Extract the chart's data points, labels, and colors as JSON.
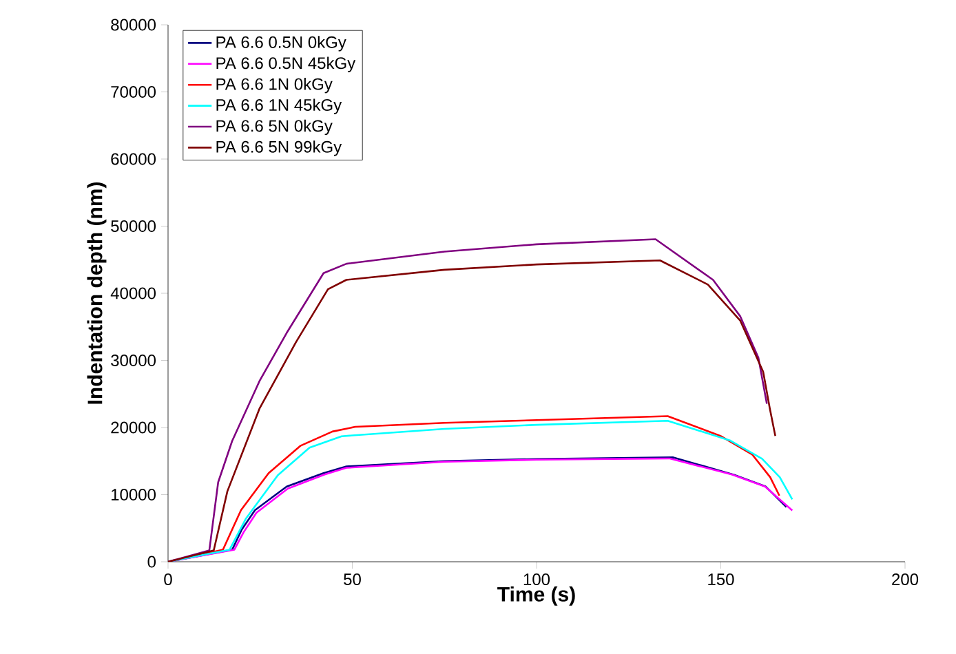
{
  "chart_data": {
    "type": "line",
    "xlabel": "Time (s)",
    "ylabel": "Indentation depth (nm)",
    "xlim": [
      0,
      200
    ],
    "ylim": [
      0,
      80000
    ],
    "xticks": [
      0,
      50,
      100,
      150,
      200
    ],
    "yticks": [
      0,
      10000,
      20000,
      30000,
      40000,
      50000,
      60000,
      70000,
      80000
    ],
    "legend": "top left",
    "grid": false,
    "marker": "none",
    "line_style": "solid",
    "series": [
      {
        "name": "PA 6.6 0.5N 0kGy",
        "color": "#000080",
        "x": [
          0,
          17.4,
          20,
          23.6,
          32.2,
          42.2,
          48.4,
          75,
          100,
          137.1,
          153.6,
          162.2,
          167.8
        ],
        "values": [
          0,
          1800,
          4800,
          7700,
          11200,
          13200,
          14200,
          15000,
          15300,
          15550,
          12950,
          11200,
          8150
        ]
      },
      {
        "name": "PA 6.6 0.5N 45kGy",
        "color": "#ff00ff",
        "x": [
          0,
          18,
          20.5,
          24,
          32.5,
          42.5,
          48.4,
          75,
          100,
          136,
          153,
          162,
          169.4
        ],
        "values": [
          0,
          1800,
          4400,
          7300,
          10900,
          13000,
          14000,
          14900,
          15200,
          15400,
          13000,
          11200,
          7650
        ]
      },
      {
        "name": "PA 6.6 1N 0kGy",
        "color": "#ff0000",
        "x": [
          0,
          14.9,
          19.8,
          27.3,
          36,
          44.6,
          50.8,
          75,
          100,
          135.6,
          149.9,
          158.5,
          163.4,
          165.9
        ],
        "values": [
          0,
          1800,
          7700,
          13200,
          17300,
          19400,
          20100,
          20700,
          21100,
          21700,
          18750,
          16000,
          12600,
          9850
        ]
      },
      {
        "name": "PA 6.6 1N 45kGy",
        "color": "#00ffff",
        "x": [
          0,
          16.7,
          21.1,
          29.8,
          38.4,
          47.1,
          75,
          100,
          135.6,
          152.6,
          161.2,
          166,
          169.4
        ],
        "values": [
          0,
          1800,
          6400,
          12900,
          17000,
          18700,
          19800,
          20400,
          21000,
          18050,
          15350,
          12600,
          9300
        ]
      },
      {
        "name": "PA 6.6 5N 0kGy",
        "color": "#800080",
        "x": [
          0,
          11.2,
          13.6,
          17.4,
          24.8,
          32.2,
          42.2,
          48.4,
          75,
          100,
          132.3,
          147.9,
          155.3,
          160.2,
          162.5
        ],
        "values": [
          0,
          1700,
          11850,
          18000,
          26900,
          34100,
          43000,
          44400,
          46200,
          47300,
          48050,
          42000,
          36550,
          30400,
          23550
        ]
      },
      {
        "name": "PA 6.6 5N 99kGy",
        "color": "#800000",
        "x": [
          0,
          12.4,
          16.1,
          24.8,
          34.7,
          43.4,
          48.4,
          75,
          100,
          133.5,
          146.5,
          155.3,
          161.5,
          163.3,
          164.8
        ],
        "values": [
          0,
          1700,
          10500,
          22800,
          32700,
          40600,
          42000,
          43500,
          44300,
          44900,
          41300,
          35900,
          28300,
          22850,
          18750
        ]
      }
    ]
  }
}
